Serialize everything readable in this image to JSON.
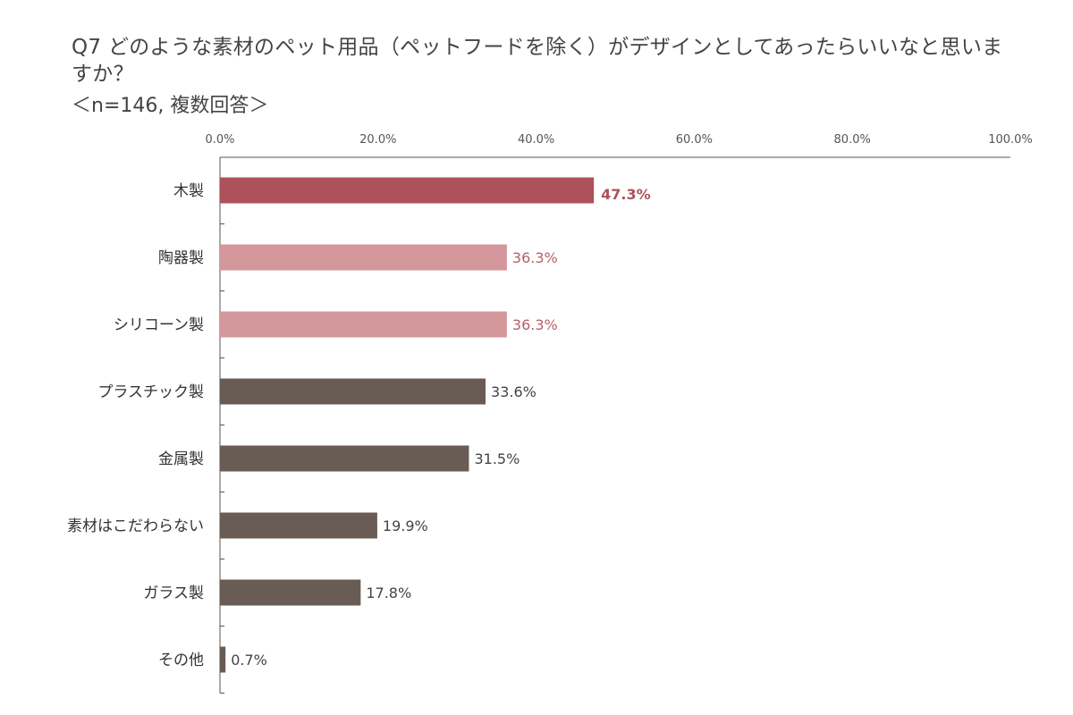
{
  "title": "Q7 どのような素材のペット用品（ペットフードを除く）がデザインとしてあったらいいなと思いますか？",
  "subtitle": "＜n=146, 複数回答＞",
  "chart_data": {
    "type": "bar",
    "orientation": "horizontal",
    "title": "Q7 どのような素材のペット用品（ペットフードを除く）がデザインとしてあったらいいなと思いますか？",
    "subtitle": "＜n=146, 複数回答＞",
    "categories": [
      "木製",
      "陶器製",
      "シリコーン製",
      "プラスチック製",
      "金属製",
      "素材はこだわらない",
      "ガラス製",
      "その他"
    ],
    "values": [
      47.3,
      36.3,
      36.3,
      33.6,
      31.5,
      19.9,
      17.8,
      0.7
    ],
    "value_labels": [
      "47.3%",
      "36.3%",
      "36.3%",
      "33.6%",
      "31.5%",
      "19.9%",
      "17.8%",
      "0.7%"
    ],
    "xlim": [
      0,
      100
    ],
    "xticks": [
      "0.0%",
      "20.0%",
      "40.0%",
      "60.0%",
      "80.0%",
      "100.0%"
    ],
    "xtick_values": [
      0,
      20,
      40,
      60,
      80,
      100
    ],
    "axis_position": "top",
    "grid": false,
    "bar_colors": [
      "#ad515a",
      "#d3979c",
      "#d3979c",
      "#685c54",
      "#685c54",
      "#685c54",
      "#685c54",
      "#685c54"
    ],
    "label_colors": [
      "#ad515a",
      "#b5606a",
      "#b5606a",
      "#444444",
      "#444444",
      "#444444",
      "#444444",
      "#444444"
    ],
    "highlight_index": 0
  }
}
